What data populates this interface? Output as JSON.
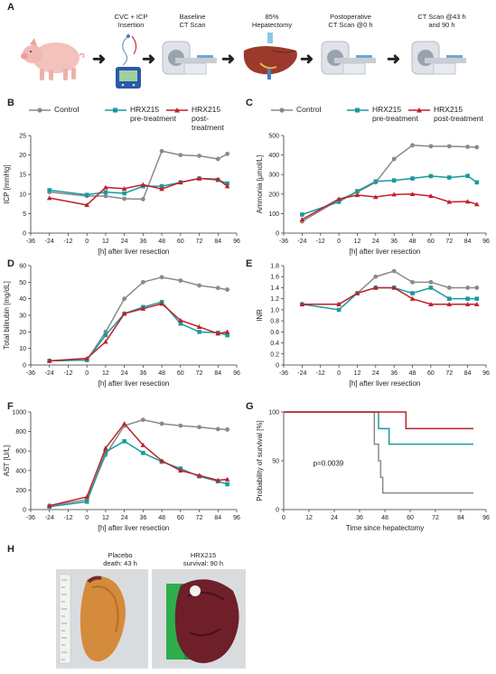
{
  "panel_labels": [
    "A",
    "B",
    "C",
    "D",
    "E",
    "F",
    "G",
    "H"
  ],
  "workflow": {
    "steps": [
      {
        "title": "",
        "sub": ""
      },
      {
        "title": "CVC + ICP",
        "sub": "Insertion"
      },
      {
        "title": "Baseline",
        "sub": "CT Scan"
      },
      {
        "title": "85%",
        "sub": "Hepatectomy"
      },
      {
        "title": "Postoperative",
        "sub": "CT Scan @0 h"
      },
      {
        "title": "CT Scan @43 h",
        "sub": "and 90 h"
      }
    ]
  },
  "colors": {
    "control": "#8a8a8a",
    "pre": "#1a9a9e",
    "post": "#c0212a"
  },
  "legend": {
    "control": "Control",
    "hrx": "HRX215",
    "pre": "pre-treatment",
    "post": "post-treatment"
  },
  "chart_data": [
    {
      "id": "B",
      "type": "line",
      "ylabel": "ICP [mmHg]",
      "xlabel": "[h] after liver resection",
      "xlim": [
        -36,
        96
      ],
      "ylim": [
        0,
        25
      ],
      "xticks": [
        -36,
        -24,
        -12,
        0,
        12,
        24,
        36,
        48,
        60,
        72,
        84,
        96
      ],
      "yticks": [
        0,
        5,
        10,
        15,
        20,
        25
      ],
      "series": [
        {
          "name": "Control",
          "x": [
            -24,
            0,
            12,
            24,
            36,
            48,
            60,
            72,
            84,
            90
          ],
          "y": [
            10.5,
            9.5,
            9.5,
            8.8,
            8.7,
            21,
            20,
            19.8,
            19,
            20.3
          ]
        },
        {
          "name": "pre-treatment",
          "x": [
            -24,
            0,
            12,
            24,
            36,
            48,
            60,
            72,
            84,
            90
          ],
          "y": [
            11,
            9.8,
            10.5,
            10.2,
            12,
            12,
            13,
            14,
            13.6,
            12.7
          ]
        },
        {
          "name": "post-treatment",
          "x": [
            -24,
            0,
            12,
            24,
            36,
            48,
            60,
            72,
            84,
            90
          ],
          "y": [
            9,
            7.2,
            11.7,
            11.4,
            12.4,
            11.3,
            13,
            14,
            13.8,
            12
          ]
        }
      ]
    },
    {
      "id": "C",
      "type": "line",
      "ylabel": "Ammonia [µmol/L]",
      "xlabel": "[h] after liver resection",
      "xlim": [
        -36,
        96
      ],
      "ylim": [
        0,
        500
      ],
      "xticks": [
        -36,
        -24,
        -12,
        0,
        12,
        24,
        36,
        48,
        60,
        72,
        84,
        96
      ],
      "yticks": [
        0,
        100,
        200,
        300,
        400,
        500
      ],
      "series": [
        {
          "name": "Control",
          "x": [
            -24,
            0,
            12,
            24,
            36,
            48,
            60,
            72,
            84,
            90
          ],
          "y": [
            60,
            170,
            210,
            260,
            380,
            450,
            445,
            445,
            442,
            440
          ]
        },
        {
          "name": "pre-treatment",
          "x": [
            -24,
            0,
            12,
            24,
            36,
            48,
            60,
            72,
            84,
            90
          ],
          "y": [
            95,
            160,
            215,
            265,
            270,
            280,
            292,
            285,
            293,
            260
          ]
        },
        {
          "name": "post-treatment",
          "x": [
            -24,
            0,
            12,
            24,
            36,
            48,
            60,
            72,
            84,
            90
          ],
          "y": [
            70,
            175,
            195,
            185,
            198,
            200,
            190,
            160,
            162,
            148
          ]
        }
      ]
    },
    {
      "id": "D",
      "type": "line",
      "ylabel": "Total bilirubin [mg/dL]",
      "xlabel": "[h] after liver resection",
      "xlim": [
        -36,
        96
      ],
      "ylim": [
        0,
        60
      ],
      "xticks": [
        -36,
        -24,
        -12,
        0,
        12,
        24,
        36,
        48,
        60,
        72,
        84,
        96
      ],
      "yticks": [
        0,
        10,
        20,
        30,
        40,
        50,
        60
      ],
      "series": [
        {
          "name": "Control",
          "x": [
            -24,
            0,
            12,
            24,
            36,
            48,
            60,
            72,
            84,
            90
          ],
          "y": [
            2.5,
            3,
            20,
            40,
            50,
            53,
            51,
            48,
            46.5,
            45.5
          ]
        },
        {
          "name": "pre-treatment",
          "x": [
            -24,
            0,
            12,
            24,
            36,
            48,
            60,
            72,
            84,
            90
          ],
          "y": [
            2.5,
            3,
            18,
            31,
            35,
            38,
            25,
            20,
            19.5,
            18
          ]
        },
        {
          "name": "post-treatment",
          "x": [
            -24,
            0,
            12,
            24,
            36,
            48,
            60,
            72,
            84,
            90
          ],
          "y": [
            2.5,
            4,
            14,
            31,
            34,
            37,
            27,
            23,
            19,
            20
          ]
        }
      ]
    },
    {
      "id": "E",
      "type": "line",
      "ylabel": "INR",
      "xlabel": "[h] after liver resection",
      "xlim": [
        -36,
        96
      ],
      "ylim": [
        0,
        1.8
      ],
      "xticks": [
        -36,
        -24,
        -12,
        0,
        12,
        24,
        36,
        48,
        60,
        72,
        84,
        96
      ],
      "yticks": [
        0,
        0.2,
        0.4,
        0.6,
        0.8,
        1.0,
        1.2,
        1.4,
        1.6,
        1.8
      ],
      "series": [
        {
          "name": "Control",
          "x": [
            -24,
            0,
            12,
            24,
            36,
            48,
            60,
            72,
            84,
            90
          ],
          "y": [
            1.1,
            1.1,
            1.3,
            1.6,
            1.7,
            1.5,
            1.5,
            1.4,
            1.4,
            1.4
          ]
        },
        {
          "name": "pre-treatment",
          "x": [
            -24,
            0,
            12,
            24,
            36,
            48,
            60,
            72,
            84,
            90
          ],
          "y": [
            1.1,
            1.0,
            1.3,
            1.4,
            1.4,
            1.3,
            1.4,
            1.2,
            1.2,
            1.2
          ]
        },
        {
          "name": "post-treatment",
          "x": [
            -24,
            0,
            12,
            24,
            36,
            48,
            60,
            72,
            84,
            90
          ],
          "y": [
            1.1,
            1.1,
            1.3,
            1.4,
            1.4,
            1.2,
            1.1,
            1.1,
            1.1,
            1.1
          ]
        }
      ]
    },
    {
      "id": "F",
      "type": "line",
      "ylabel": "AST [U/L]",
      "xlabel": "[h] after liver resection",
      "xlim": [
        -36,
        96
      ],
      "ylim": [
        0,
        1000
      ],
      "xticks": [
        -36,
        -24,
        -12,
        0,
        12,
        24,
        36,
        48,
        60,
        72,
        84,
        96
      ],
      "yticks": [
        0,
        200,
        400,
        600,
        800,
        1000
      ],
      "series": [
        {
          "name": "Control",
          "x": [
            -24,
            0,
            12,
            24,
            36,
            48,
            60,
            72,
            84,
            90
          ],
          "y": [
            40,
            100,
            560,
            860,
            920,
            880,
            860,
            845,
            825,
            820
          ]
        },
        {
          "name": "pre-treatment",
          "x": [
            -24,
            0,
            12,
            24,
            36,
            48,
            60,
            72,
            84,
            90
          ],
          "y": [
            30,
            80,
            590,
            700,
            580,
            490,
            420,
            340,
            290,
            260
          ]
        },
        {
          "name": "post-treatment",
          "x": [
            -24,
            0,
            12,
            24,
            36,
            48,
            60,
            72,
            84,
            90
          ],
          "y": [
            40,
            130,
            630,
            880,
            660,
            500,
            400,
            350,
            300,
            310
          ]
        }
      ]
    },
    {
      "id": "G",
      "type": "line",
      "ylabel": "Probability of survival [%]",
      "xlabel": "Time since hepatectomy",
      "xlim": [
        0,
        96
      ],
      "ylim": [
        0,
        100
      ],
      "xticks": [
        0,
        12,
        24,
        36,
        48,
        60,
        72,
        84,
        96
      ],
      "yticks": [
        0,
        50,
        100
      ],
      "annotation": "p=0.0039",
      "series": [
        {
          "name": "Control",
          "x": [
            0,
            43,
            43,
            45,
            45,
            46,
            46,
            47,
            47,
            48,
            48,
            90
          ],
          "y": [
            100,
            100,
            67,
            67,
            50,
            50,
            33,
            33,
            17,
            17,
            17,
            17
          ]
        },
        {
          "name": "pre-treatment",
          "x": [
            0,
            45,
            45,
            50,
            50,
            90
          ],
          "y": [
            100,
            100,
            83,
            83,
            67,
            67
          ]
        },
        {
          "name": "post-treatment",
          "x": [
            0,
            58,
            58,
            90
          ],
          "y": [
            100,
            100,
            83,
            83
          ]
        }
      ]
    }
  ],
  "photos": {
    "left": {
      "line1": "Placebo",
      "line2": "death: 43 h"
    },
    "right": {
      "line1": "HRX215",
      "line2": "survival: 90 h"
    }
  }
}
